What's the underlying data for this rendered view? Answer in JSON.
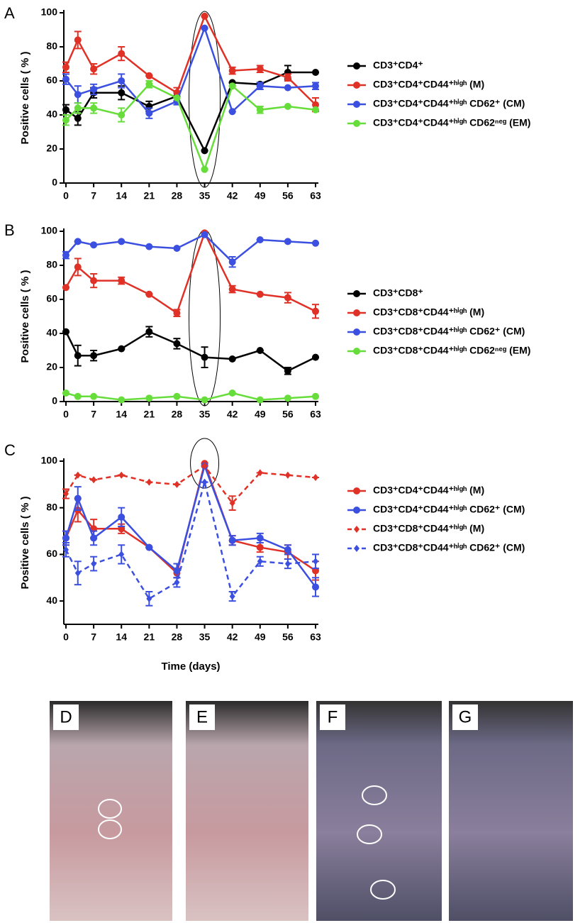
{
  "chart_data": [
    {
      "type": "line",
      "panel_label": "A",
      "y_label": "Positive cells ( % )",
      "x": [
        0,
        3,
        7,
        14,
        21,
        28,
        35,
        42,
        49,
        56,
        63
      ],
      "xlim": [
        0,
        63
      ],
      "xticks": [
        0,
        7,
        14,
        21,
        28,
        35,
        42,
        49,
        56,
        63
      ],
      "ylim": [
        0,
        100
      ],
      "yticks": [
        0,
        20,
        40,
        60,
        80,
        100
      ],
      "series": [
        {
          "name": "CD3⁺CD4⁺",
          "color": "#000000",
          "values": [
            43,
            38,
            53,
            53,
            45,
            51,
            19,
            59,
            58,
            65,
            65
          ],
          "errors": [
            3,
            4,
            3,
            4,
            3,
            3,
            0,
            0,
            1,
            4,
            0
          ]
        },
        {
          "name": "CD3⁺CD4⁺CD44⁺ʰⁱᵍʰ (M)",
          "color": "#e03127",
          "values": [
            68,
            84,
            67,
            76,
            63,
            53,
            98,
            66,
            67,
            62,
            46
          ],
          "errors": [
            3,
            5,
            3,
            4,
            0,
            3,
            0,
            2,
            2,
            2,
            4
          ]
        },
        {
          "name": "CD3⁺CD4⁺CD44⁺ʰⁱᵍʰ CD62⁺ (CM)",
          "color": "#3b4fe0",
          "values": [
            61,
            52,
            55,
            60,
            41,
            48,
            91,
            42,
            57,
            56,
            57
          ],
          "errors": [
            3,
            5,
            3,
            4,
            3,
            2,
            0,
            0,
            2,
            0,
            2
          ]
        },
        {
          "name": "CD3⁺CD4⁺CD44⁺ʰⁱᵍʰ CD62ⁿᵉᵍ (EM)",
          "color": "#66dd3a",
          "values": [
            37,
            44,
            44,
            40,
            58,
            50,
            8,
            57,
            43,
            45,
            43
          ],
          "errors": [
            3,
            3,
            3,
            4,
            2,
            0,
            0,
            0,
            2,
            0,
            0
          ]
        }
      ]
    },
    {
      "type": "line",
      "panel_label": "B",
      "y_label": "Positive cells ( % )",
      "x": [
        0,
        3,
        7,
        14,
        21,
        28,
        35,
        42,
        49,
        56,
        63
      ],
      "xlim": [
        0,
        63
      ],
      "xticks": [
        0,
        7,
        14,
        21,
        28,
        35,
        42,
        49,
        56,
        63
      ],
      "ylim": [
        0,
        100
      ],
      "yticks": [
        0,
        20,
        40,
        60,
        80,
        100
      ],
      "series": [
        {
          "name": "CD3⁺CD8⁺",
          "color": "#000000",
          "values": [
            41,
            27,
            27,
            31,
            41,
            34,
            26,
            25,
            30,
            18,
            26
          ],
          "errors": [
            0,
            6,
            3,
            0,
            3,
            3,
            6,
            0,
            0,
            2,
            0
          ]
        },
        {
          "name": "CD3⁺CD8⁺CD44⁺ʰⁱᵍʰ (M)",
          "color": "#e03127",
          "values": [
            67,
            79,
            71,
            71,
            63,
            52,
            99,
            66,
            63,
            61,
            53
          ],
          "errors": [
            0,
            5,
            4,
            2,
            0,
            2,
            0,
            2,
            0,
            3,
            4
          ]
        },
        {
          "name": "CD3⁺CD8⁺CD44⁺ʰⁱᵍʰ CD62⁺ (CM)",
          "color": "#3b4fe0",
          "values": [
            86,
            94,
            92,
            94,
            91,
            90,
            98,
            82,
            95,
            94,
            93
          ],
          "errors": [
            2,
            0,
            0,
            0,
            0,
            0,
            0,
            3,
            0,
            0,
            0
          ]
        },
        {
          "name": "CD3⁺CD8⁺CD44⁺ʰⁱᵍʰ CD62ⁿᵉᵍ (EM)",
          "color": "#66dd3a",
          "values": [
            5,
            3,
            3,
            1,
            2,
            3,
            1,
            5,
            1,
            2,
            3
          ],
          "errors": [
            0,
            0,
            0,
            0,
            0,
            0,
            0,
            0,
            0,
            0,
            0
          ]
        }
      ]
    },
    {
      "type": "line",
      "panel_label": "C",
      "y_label": "Positive cells ( % )",
      "x_label": "Time (days)",
      "x": [
        0,
        3,
        7,
        14,
        21,
        28,
        35,
        42,
        49,
        56,
        63
      ],
      "xlim": [
        0,
        63
      ],
      "xticks": [
        0,
        7,
        14,
        21,
        28,
        35,
        42,
        49,
        56,
        63
      ],
      "ylim": [
        30,
        100
      ],
      "yticks": [
        40,
        60,
        80,
        100
      ],
      "series": [
        {
          "name": "CD3⁺CD4⁺CD44⁺ʰⁱᵍʰ (M)",
          "color": "#e03127",
          "dashed": false,
          "marker": "circle",
          "values": [
            67,
            79,
            71,
            71,
            63,
            52,
            99,
            66,
            63,
            61,
            53
          ],
          "errors": [
            3,
            5,
            4,
            2,
            0,
            2,
            0,
            2,
            2,
            3,
            4
          ]
        },
        {
          "name": "CD3⁺CD4⁺CD44⁺ʰⁱᵍʰ CD62⁺ (CM)",
          "color": "#3b4fe0",
          "dashed": false,
          "marker": "circle",
          "values": [
            67,
            84,
            67,
            76,
            63,
            53,
            98,
            66,
            67,
            62,
            46
          ],
          "errors": [
            3,
            5,
            3,
            4,
            0,
            3,
            0,
            2,
            2,
            2,
            4
          ]
        },
        {
          "name": "CD3⁺CD8⁺CD44⁺ʰⁱᵍʰ (M)",
          "color": "#e03127",
          "dashed": true,
          "marker": "diamond",
          "values": [
            86,
            94,
            92,
            94,
            91,
            90,
            98,
            82,
            95,
            94,
            93
          ],
          "errors": [
            2,
            0,
            0,
            0,
            0,
            0,
            0,
            3,
            0,
            0,
            0
          ]
        },
        {
          "name": "CD3⁺CD8⁺CD44⁺ʰⁱᵍʰ CD62⁺ (CM)",
          "color": "#3b4fe0",
          "dashed": true,
          "marker": "diamond",
          "values": [
            62,
            52,
            56,
            60,
            41,
            48,
            91,
            42,
            57,
            56,
            57
          ],
          "errors": [
            3,
            5,
            3,
            4,
            3,
            2,
            0,
            2,
            2,
            2,
            3
          ]
        }
      ]
    }
  ],
  "photos": [
    {
      "label": "D"
    },
    {
      "label": "E"
    },
    {
      "label": "F"
    },
    {
      "label": "G"
    }
  ]
}
